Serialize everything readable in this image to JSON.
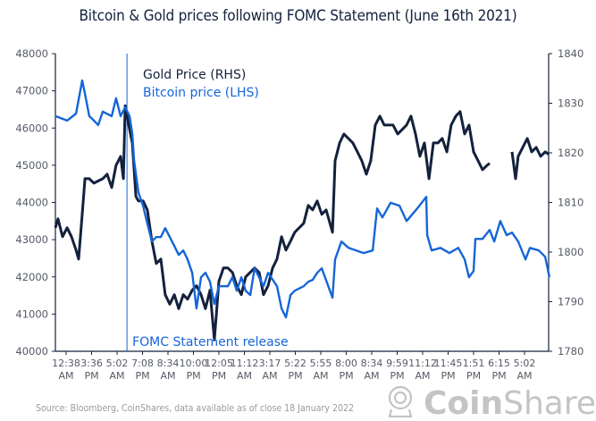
{
  "chart_data": {
    "type": "line",
    "title": "Bitcoin & Gold prices following FOMC Statement (June 16th 2021)",
    "x_tick_labels": [
      [
        "12:38",
        "AM"
      ],
      [
        "3:36",
        "PM"
      ],
      [
        "5:02",
        "AM"
      ],
      [
        "7:08",
        "PM"
      ],
      [
        "8:34",
        "AM"
      ],
      [
        "10:00",
        "PM"
      ],
      [
        "12:05",
        "PM"
      ],
      [
        "11:12",
        "AM"
      ],
      [
        "3:17",
        "AM"
      ],
      [
        "5:22",
        "PM"
      ],
      [
        "5:55",
        "AM"
      ],
      [
        "8:00",
        "PM"
      ],
      [
        "8:34",
        "AM"
      ],
      [
        "9:59",
        "PM"
      ],
      [
        "11:12",
        "AM"
      ],
      [
        "11:45",
        "PM"
      ],
      [
        "1:51",
        "PM"
      ],
      [
        "6:15",
        "PM"
      ],
      [
        "5:02",
        "AM"
      ]
    ],
    "x_units": "tick index (0 = first tick label)",
    "xlim": [
      -0.42,
      18.95
    ],
    "y_left": {
      "ylim": [
        40000,
        48000
      ],
      "ticks": [
        40000,
        41000,
        42000,
        43000,
        44000,
        45000,
        46000,
        47000,
        48000
      ]
    },
    "y_right": {
      "ylim": [
        1780,
        1840
      ],
      "ticks": [
        1780,
        1790,
        1800,
        1810,
        1820,
        1830,
        1840
      ]
    },
    "grid": false,
    "legend_placement": "top-left (inside)",
    "annotation": {
      "text": "FOMC Statement release",
      "x": 2.39,
      "color": "#1565d8"
    },
    "series": [
      {
        "name": "Gold Price (RHS)",
        "axis": "right",
        "color": "#14213d",
        "points": [
          [
            -0.42,
            1804.9
          ],
          [
            -0.32,
            1806.7
          ],
          [
            -0.14,
            1803.1
          ],
          [
            0.04,
            1804.9
          ],
          [
            0.21,
            1803.1
          ],
          [
            0.39,
            1800.4
          ],
          [
            0.49,
            1798.6
          ],
          [
            0.63,
            1807.6
          ],
          [
            0.74,
            1814.8
          ],
          [
            0.91,
            1814.8
          ],
          [
            1.09,
            1813.9
          ],
          [
            1.44,
            1814.8
          ],
          [
            1.61,
            1815.7
          ],
          [
            1.79,
            1813.0
          ],
          [
            1.96,
            1817.5
          ],
          [
            2.14,
            1819.3
          ],
          [
            2.25,
            1814.8
          ],
          [
            2.32,
            1829.5
          ],
          [
            2.49,
            1824.7
          ],
          [
            2.6,
            1822.0
          ],
          [
            2.74,
            1811.2
          ],
          [
            2.84,
            1810.3
          ],
          [
            3.02,
            1810.3
          ],
          [
            3.19,
            1808.5
          ],
          [
            3.37,
            1802.2
          ],
          [
            3.54,
            1797.7
          ],
          [
            3.72,
            1798.6
          ],
          [
            3.89,
            1791.4
          ],
          [
            4.07,
            1789.5
          ],
          [
            4.25,
            1791.4
          ],
          [
            4.42,
            1788.6
          ],
          [
            4.6,
            1791.4
          ],
          [
            4.77,
            1790.5
          ],
          [
            4.95,
            1792.3
          ],
          [
            5.12,
            1793.2
          ],
          [
            5.3,
            1791.4
          ],
          [
            5.47,
            1788.6
          ],
          [
            5.65,
            1792.3
          ],
          [
            5.82,
            1782.3
          ],
          [
            6.0,
            1794.1
          ],
          [
            6.18,
            1796.8
          ],
          [
            6.35,
            1796.8
          ],
          [
            6.53,
            1795.9
          ],
          [
            6.7,
            1793.2
          ],
          [
            6.88,
            1791.4
          ],
          [
            7.05,
            1795.0
          ],
          [
            7.4,
            1796.8
          ],
          [
            7.58,
            1795.9
          ],
          [
            7.75,
            1791.4
          ],
          [
            7.93,
            1793.2
          ],
          [
            8.11,
            1796.8
          ],
          [
            8.28,
            1798.6
          ],
          [
            8.46,
            1803.1
          ],
          [
            8.63,
            1800.4
          ],
          [
            8.81,
            1802.2
          ],
          [
            8.98,
            1804.0
          ],
          [
            9.33,
            1805.8
          ],
          [
            9.51,
            1809.4
          ],
          [
            9.68,
            1808.5
          ],
          [
            9.86,
            1810.3
          ],
          [
            10.04,
            1807.6
          ],
          [
            10.21,
            1808.5
          ],
          [
            10.46,
            1804.0
          ],
          [
            10.56,
            1818.4
          ],
          [
            10.74,
            1822.0
          ],
          [
            10.91,
            1823.8
          ],
          [
            11.26,
            1822.0
          ],
          [
            11.44,
            1820.2
          ],
          [
            11.61,
            1818.4
          ],
          [
            11.79,
            1815.7
          ],
          [
            11.96,
            1818.4
          ],
          [
            12.14,
            1825.6
          ],
          [
            12.32,
            1827.4
          ],
          [
            12.49,
            1825.6
          ],
          [
            12.84,
            1825.6
          ],
          [
            13.02,
            1823.8
          ],
          [
            13.37,
            1825.6
          ],
          [
            13.54,
            1827.4
          ],
          [
            13.72,
            1823.8
          ],
          [
            13.89,
            1819.3
          ],
          [
            14.07,
            1822.0
          ],
          [
            14.25,
            1814.8
          ],
          [
            14.42,
            1822.0
          ],
          [
            14.6,
            1822.0
          ],
          [
            14.77,
            1822.9
          ],
          [
            14.95,
            1820.2
          ],
          [
            15.12,
            1825.6
          ],
          [
            15.3,
            1827.4
          ],
          [
            15.47,
            1828.3
          ],
          [
            15.65,
            1823.8
          ],
          [
            15.82,
            1825.6
          ],
          [
            16.0,
            1820.2
          ],
          [
            16.18,
            1818.4
          ],
          [
            16.35,
            1816.6
          ],
          [
            16.53,
            1817.5
          ],
          [
            16.63,
            1817.9
          ],
          null,
          [
            17.51,
            1820.2
          ],
          [
            17.65,
            1814.8
          ],
          [
            17.75,
            1819.3
          ],
          [
            17.93,
            1821.1
          ],
          [
            18.11,
            1822.9
          ],
          [
            18.28,
            1820.2
          ],
          [
            18.46,
            1821.1
          ],
          [
            18.63,
            1819.3
          ],
          [
            18.81,
            1820.2
          ],
          [
            18.95,
            1819.7
          ]
        ]
      },
      {
        "name": "Bitcoin price (LHS)",
        "axis": "left",
        "color": "#1565d8",
        "points": [
          [
            -0.42,
            46320
          ],
          [
            0.04,
            46200
          ],
          [
            0.39,
            46390
          ],
          [
            0.63,
            47280
          ],
          [
            0.74,
            46920
          ],
          [
            0.91,
            46320
          ],
          [
            1.09,
            46200
          ],
          [
            1.26,
            46080
          ],
          [
            1.44,
            46440
          ],
          [
            1.79,
            46320
          ],
          [
            1.96,
            46800
          ],
          [
            2.14,
            46320
          ],
          [
            2.32,
            46560
          ],
          [
            2.49,
            46320
          ],
          [
            2.6,
            45840
          ],
          [
            2.67,
            45120
          ],
          [
            2.84,
            44270
          ],
          [
            3.02,
            43910
          ],
          [
            3.19,
            43430
          ],
          [
            3.37,
            42950
          ],
          [
            3.54,
            43070
          ],
          [
            3.72,
            43070
          ],
          [
            3.89,
            43310
          ],
          [
            4.07,
            43070
          ],
          [
            4.25,
            42830
          ],
          [
            4.42,
            42590
          ],
          [
            4.6,
            42710
          ],
          [
            4.77,
            42470
          ],
          [
            4.95,
            42110
          ],
          [
            5.12,
            41150
          ],
          [
            5.3,
            41990
          ],
          [
            5.47,
            42110
          ],
          [
            5.65,
            41870
          ],
          [
            5.82,
            41270
          ],
          [
            6.0,
            41750
          ],
          [
            6.35,
            41750
          ],
          [
            6.53,
            41990
          ],
          [
            6.7,
            41630
          ],
          [
            6.88,
            41990
          ],
          [
            7.05,
            41630
          ],
          [
            7.23,
            41510
          ],
          [
            7.4,
            42230
          ],
          [
            7.58,
            41990
          ],
          [
            7.75,
            41750
          ],
          [
            7.93,
            42110
          ],
          [
            8.28,
            41750
          ],
          [
            8.46,
            41150
          ],
          [
            8.63,
            40910
          ],
          [
            8.81,
            41510
          ],
          [
            8.98,
            41630
          ],
          [
            9.33,
            41750
          ],
          [
            9.51,
            41870
          ],
          [
            9.68,
            41920
          ],
          [
            9.86,
            42110
          ],
          [
            10.04,
            42230
          ],
          [
            10.46,
            41440
          ],
          [
            10.56,
            42470
          ],
          [
            10.81,
            42950
          ],
          [
            11.09,
            42780
          ],
          [
            11.68,
            42640
          ],
          [
            12.04,
            42710
          ],
          [
            12.21,
            43840
          ],
          [
            12.42,
            43600
          ],
          [
            12.74,
            43990
          ],
          [
            13.09,
            43910
          ],
          [
            13.37,
            43500
          ],
          [
            13.79,
            43840
          ],
          [
            14.14,
            44150
          ],
          [
            14.18,
            43120
          ],
          [
            14.35,
            42710
          ],
          [
            14.7,
            42780
          ],
          [
            15.05,
            42640
          ],
          [
            15.4,
            42780
          ],
          [
            15.65,
            42470
          ],
          [
            15.82,
            41990
          ],
          [
            16.0,
            42160
          ],
          [
            16.07,
            43020
          ],
          [
            16.35,
            43020
          ],
          [
            16.63,
            43260
          ],
          [
            16.81,
            42950
          ],
          [
            17.05,
            43500
          ],
          [
            17.3,
            43120
          ],
          [
            17.51,
            43190
          ],
          [
            17.75,
            42950
          ],
          [
            18.04,
            42470
          ],
          [
            18.21,
            42780
          ],
          [
            18.56,
            42710
          ],
          [
            18.81,
            42540
          ],
          [
            18.98,
            41990
          ]
        ]
      }
    ]
  },
  "footer": {
    "source": "Source: Bloomberg, CoinShares, data available as of close 18 January 2022",
    "logo_text": "CoinShares"
  }
}
